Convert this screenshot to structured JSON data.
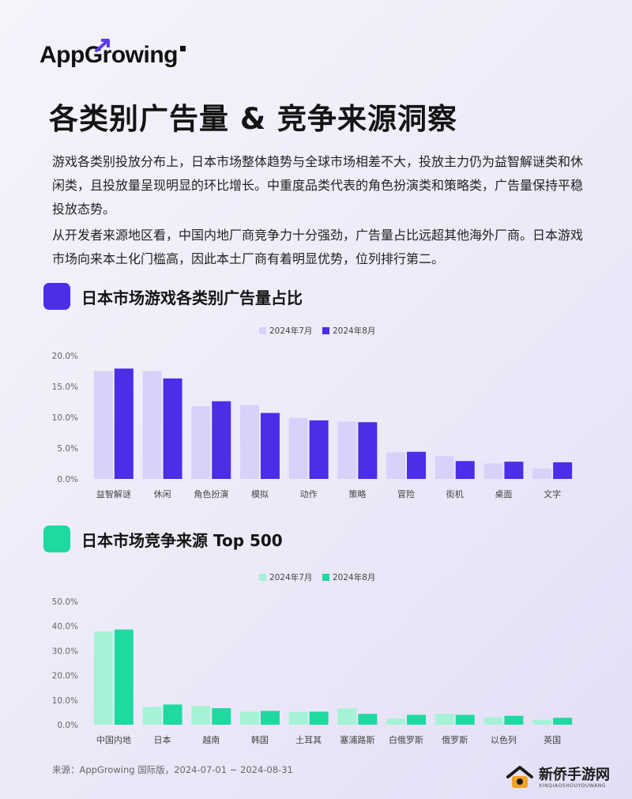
{
  "brand": {
    "logo_text": "AppGrowing"
  },
  "title": "各类别广告量 & 竞争来源洞察",
  "paragraphs": [
    "游戏各类别投放分布上，日本市场整体趋势与全球市场相差不大，投放主力仍为益智解谜类和休闲类，且投放量呈现明显的环比增长。中重度品类代表的角色扮演类和策略类，广告量保持平稳投放态势。",
    "从开发者来源地区看，中国内地厂商竞争力十分强劲，广告量占比远超其他海外厂商。日本游戏市场向来本土化门槛高，因此本土厂商有着明显优势，位列排行第二。"
  ],
  "section1": {
    "title": "日本市场游戏各类别广告量占比",
    "accent": "#4a2ee8"
  },
  "section2": {
    "title": "日本市场竞争来源 Top 500",
    "accent": "#1ed9a0"
  },
  "chart_data": [
    {
      "type": "bar",
      "title": "日本市场游戏各类别广告量占比",
      "categories": [
        "益智解谜",
        "休闲",
        "角色扮演",
        "模拟",
        "动作",
        "策略",
        "冒险",
        "街机",
        "桌面",
        "文字"
      ],
      "series": [
        {
          "name": "2024年7月",
          "color": "#d8d2fa",
          "values": [
            17.5,
            17.5,
            11.8,
            12.0,
            9.9,
            9.3,
            4.3,
            3.7,
            2.5,
            1.7
          ]
        },
        {
          "name": "2024年8月",
          "color": "#4a2ee8",
          "values": [
            17.9,
            16.3,
            12.6,
            10.7,
            9.5,
            9.2,
            4.4,
            2.9,
            2.8,
            2.7
          ]
        }
      ],
      "yticks": [
        "0.0%",
        "5.0%",
        "10.0%",
        "15.0%",
        "20.0%"
      ],
      "ylim": [
        0,
        20
      ],
      "legend": "top-center",
      "grid": false
    },
    {
      "type": "bar",
      "title": "日本市场竞争来源 Top 500",
      "categories": [
        "中国内地",
        "日本",
        "越南",
        "韩国",
        "土耳其",
        "塞浦路斯",
        "白俄罗斯",
        "俄罗斯",
        "以色列",
        "英国"
      ],
      "series": [
        {
          "name": "2024年7月",
          "color": "#a5f3d6",
          "values": [
            37.8,
            7.2,
            7.6,
            5.3,
            5.2,
            6.6,
            2.5,
            4.4,
            3.0,
            2.0
          ]
        },
        {
          "name": "2024年8月",
          "color": "#1ed9a0",
          "values": [
            38.6,
            8.2,
            6.7,
            5.6,
            5.3,
            4.4,
            4.0,
            4.0,
            3.6,
            2.8
          ]
        }
      ],
      "yticks": [
        "0.0%",
        "10.0%",
        "20.0%",
        "30.0%",
        "40.0%",
        "50.0%"
      ],
      "ylim": [
        0,
        50
      ],
      "legend": "top-center",
      "grid": false
    }
  ],
  "source": "来源：AppGrowing 国际版，2024-07-01 ~ 2024-08-31",
  "watermark": {
    "main": "新侨手游网",
    "sub": "XINQIAOSHOUYOUWANG"
  }
}
